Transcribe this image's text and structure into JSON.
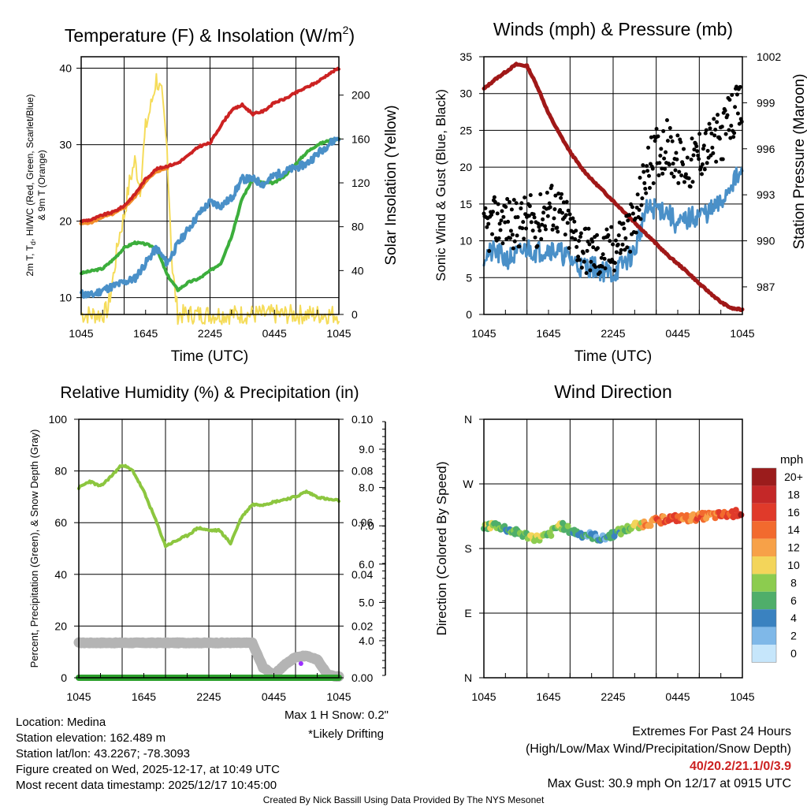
{
  "colors": {
    "temp": "#cc2222",
    "temp9m": "#f28e2b",
    "windchill": "#4a90c8",
    "dewpoint": "#3cae3c",
    "insolation": "#f5dc5a",
    "gust": "#000000",
    "wind": "#4a90c8",
    "pressure": "#a01818",
    "rh": "#8cc63f",
    "precip": "#2ca02c",
    "snow": "#b4b4b4",
    "drift": "#9b30ff",
    "extremes": "#cc2222",
    "footer": "#909090"
  },
  "chart_data": [
    {
      "id": "temperature",
      "type": "line",
      "title": "Temperature (F) & Insolation (W/m",
      "title_sup": "2",
      "title_close": ")",
      "xlabel": "Time (UTC)",
      "ylabel_left_1": "2m T, T",
      "ylabel_left_sub": "d",
      "ylabel_left_2": ", HI/WC (Red, Green, Scarlet/Blue)",
      "ylabel_left_3": "& 9m T (Orange)",
      "ylabel_right": "Solar Insolation (Yellow)",
      "x_ticks": [
        "1045",
        "1645",
        "2245",
        "0445",
        "1045"
      ],
      "ylim": [
        7.8,
        41.5
      ],
      "yticks_left": [
        10,
        20,
        30,
        40
      ],
      "ylim_right": [
        0,
        235
      ],
      "yticks_right": [
        0,
        40,
        80,
        120,
        160,
        200
      ],
      "x_range_hours": [
        0,
        24
      ],
      "series": [
        {
          "name": "2m T",
          "color_key": "temp",
          "x": [
            0,
            1,
            2,
            3,
            4,
            5,
            6,
            7,
            8,
            9,
            10,
            11,
            12,
            13,
            14,
            15,
            16,
            17,
            18,
            19,
            20,
            21,
            22,
            23,
            24
          ],
          "values": [
            20.0,
            20.2,
            20.8,
            21.2,
            22.0,
            23.5,
            25.5,
            26.8,
            27.2,
            27.6,
            28.6,
            29.8,
            30.2,
            32.5,
            34.5,
            35.2,
            34.0,
            34.4,
            35.5,
            36.0,
            36.8,
            37.5,
            38.2,
            39.2,
            40.0
          ]
        },
        {
          "name": "9m T",
          "color_key": "temp9m",
          "x": [
            0,
            1,
            2,
            3,
            4,
            5,
            6,
            7,
            8
          ],
          "values": [
            19.7,
            19.9,
            20.6,
            21.0,
            21.8,
            23.2,
            25.3,
            26.5,
            27.0
          ]
        },
        {
          "name": "Dew Point",
          "color_key": "dewpoint",
          "x": [
            0,
            1,
            2,
            3,
            4,
            5,
            6,
            7,
            8,
            9,
            10,
            11,
            12,
            13,
            14,
            15,
            16,
            17,
            18,
            19,
            20,
            21,
            22,
            23,
            24
          ],
          "values": [
            13.2,
            13.5,
            13.8,
            15.0,
            16.5,
            17.2,
            17.0,
            16.5,
            13.0,
            11.0,
            12.0,
            12.5,
            13.5,
            14.5,
            18.0,
            23.0,
            25.5,
            25.0,
            25.0,
            26.0,
            27.5,
            29.0,
            30.0,
            30.5,
            30.8
          ]
        },
        {
          "name": "Wind Chill",
          "color_key": "windchill",
          "x": [
            0,
            1,
            2,
            3,
            4,
            5,
            6,
            7,
            8,
            9,
            10,
            11,
            12,
            13,
            14,
            15,
            16,
            17,
            18,
            19,
            20,
            21,
            22,
            23,
            24
          ],
          "values": [
            10.5,
            10.3,
            11.0,
            11.5,
            12.0,
            12.5,
            14.5,
            16.5,
            14.5,
            17.0,
            19.0,
            21.0,
            22.5,
            22.0,
            23.0,
            25.5,
            25.5,
            24.8,
            26.0,
            26.5,
            27.0,
            27.5,
            28.8,
            30.0,
            31.0
          ]
        },
        {
          "name": "Solar Insolation",
          "color_key": "insolation",
          "axis": "right",
          "x": [
            0,
            1,
            2,
            2.5,
            3,
            3.5,
            4,
            4.5,
            5,
            5.5,
            6,
            6.5,
            7,
            7.5,
            8,
            8.5,
            9,
            24
          ],
          "values": [
            0,
            0,
            0,
            5,
            35,
            70,
            90,
            120,
            140,
            115,
            170,
            190,
            215,
            200,
            150,
            40,
            0,
            0
          ]
        }
      ]
    },
    {
      "id": "winds",
      "type": "scatter",
      "title": "Winds (mph) & Pressure (mb)",
      "xlabel": "Time (UTC)",
      "ylabel_left": "Sonic Wind & Gust (Blue, Black)",
      "ylabel_right": "Station Pressure (Maroon)",
      "x_ticks": [
        "1045",
        "1645",
        "2245",
        "0445",
        "1045"
      ],
      "ylim": [
        0,
        35
      ],
      "yticks_left": [
        0,
        5,
        10,
        15,
        20,
        25,
        30,
        35
      ],
      "ylim_right": [
        985.2,
        1002
      ],
      "yticks_right": [
        987,
        990,
        993,
        996,
        999,
        1002
      ],
      "x_range_hours": [
        0,
        24
      ],
      "series": [
        {
          "name": "Sonic Wind",
          "color_key": "wind",
          "x": [
            0,
            1,
            2,
            3,
            4,
            5,
            6,
            7,
            8,
            9,
            10,
            11,
            12,
            13,
            14,
            15,
            16,
            17,
            18,
            19,
            20,
            21,
            22,
            23,
            24
          ],
          "values": [
            8.0,
            8.5,
            7.5,
            8.0,
            9.0,
            8.5,
            9.0,
            8.5,
            7.5,
            6.5,
            6.5,
            6.0,
            5.5,
            7.0,
            8.5,
            14.0,
            14.5,
            14.0,
            12.0,
            13.0,
            13.5,
            14.0,
            15.0,
            18.0,
            19.0
          ]
        },
        {
          "name": "Gust",
          "color_key": "gust",
          "x": [
            0,
            1,
            2,
            3,
            4,
            5,
            6,
            7,
            8,
            9,
            10,
            11,
            12,
            13,
            14,
            15,
            16,
            17,
            18,
            19,
            20,
            21,
            22,
            23,
            24
          ],
          "values": [
            11.0,
            12.5,
            13.0,
            12.0,
            13.0,
            12.5,
            15.0,
            14.0,
            11.5,
            9.5,
            8.5,
            8.0,
            9.0,
            11.0,
            12.0,
            19.0,
            22.0,
            23.0,
            21.0,
            20.0,
            22.0,
            23.0,
            24.0,
            27.0,
            28.0
          ]
        },
        {
          "name": "Station Pressure",
          "color_key": "pressure",
          "axis": "right",
          "x": [
            0,
            1,
            2,
            3,
            4,
            5,
            6,
            7,
            8,
            9,
            10,
            11,
            12,
            13,
            14,
            15,
            16,
            17,
            18,
            19,
            20,
            21,
            22,
            23,
            24
          ],
          "values": [
            999.9,
            1000.5,
            1001.0,
            1001.5,
            1001.4,
            1000.0,
            998.3,
            997.0,
            995.8,
            994.8,
            994.0,
            993.3,
            992.6,
            991.9,
            991.2,
            990.5,
            989.8,
            989.1,
            988.5,
            987.9,
            987.2,
            986.6,
            986.0,
            985.6,
            985.5
          ]
        }
      ]
    },
    {
      "id": "humidity",
      "type": "line",
      "title": "Relative Humidity (%) & Precipitation (in)",
      "ylabel_left": "Percent, Precipitation (Green), & Snow Depth (Gray)",
      "x_ticks": [
        "1045",
        "1645",
        "2245",
        "0445",
        "1045"
      ],
      "ylim": [
        0,
        100
      ],
      "yticks_left": [
        0,
        20,
        40,
        60,
        80,
        100
      ],
      "ylim_right": [
        0,
        0.1
      ],
      "yticks_right": [
        "0.00",
        "0.02",
        "0.04",
        "0.06",
        "0.08",
        "0.10"
      ],
      "snow_ticks": [
        "4.0",
        "5.0",
        "6.0",
        "7.0",
        "8.0",
        "9.0"
      ],
      "x_range_hours": [
        0,
        24
      ],
      "snow_note": "Max 1 H Snow: 0.2\"",
      "drift_note": "*Likely Drifting",
      "series": [
        {
          "name": "Relative Humidity",
          "color_key": "rh",
          "x": [
            0,
            1,
            2,
            3,
            4,
            5,
            6,
            7,
            8,
            9,
            10,
            11,
            12,
            13,
            14,
            15,
            16,
            17,
            18,
            19,
            20,
            21,
            22,
            23,
            24
          ],
          "values": [
            73.5,
            76.0,
            74.0,
            78.0,
            82.5,
            80.0,
            72.0,
            62.0,
            51.0,
            53.0,
            55.0,
            58.0,
            57.0,
            57.0,
            52.0,
            62.0,
            67.0,
            67.0,
            68.0,
            69.0,
            70.0,
            72.0,
            70.0,
            69.0,
            68.5
          ]
        },
        {
          "name": "Snow Depth",
          "color_key": "snow",
          "x": [
            0,
            1,
            2,
            3,
            4,
            5,
            6,
            7,
            8,
            9,
            10,
            11,
            12,
            13,
            14,
            15,
            16,
            17,
            18,
            19,
            20,
            21,
            22,
            23,
            24
          ],
          "values": [
            13.5,
            13.5,
            13.5,
            13.5,
            13.5,
            13.5,
            13.5,
            13.5,
            13.5,
            13.5,
            13.5,
            13.5,
            13.5,
            13.5,
            13.5,
            13.5,
            13.5,
            4.0,
            1.0,
            5.0,
            8.0,
            8.5,
            7.0,
            1.0,
            0.5
          ]
        },
        {
          "name": "Precipitation",
          "color_key": "precip",
          "x": [
            0,
            24
          ],
          "values": [
            0,
            0
          ]
        }
      ]
    },
    {
      "id": "direction",
      "type": "scatter",
      "title": "Wind Direction",
      "ylabel_left": "Direction (Colored By Speed)",
      "x_ticks": [
        "1045",
        "1645",
        "2245",
        "0445",
        "1045"
      ],
      "ylim": [
        0,
        360
      ],
      "ytick_labels": [
        "N",
        "E",
        "S",
        "W",
        "N"
      ],
      "x_range_hours": [
        0,
        24
      ],
      "colorbar_title": "mph",
      "colorbar_labels": [
        "20+",
        "18",
        "16",
        "14",
        "12",
        "10",
        "8",
        "6",
        "4",
        "2",
        "0"
      ],
      "colorbar_colors": [
        "#9b1c1c",
        "#c42828",
        "#e03a2a",
        "#f26a2e",
        "#f7a148",
        "#f3d55a",
        "#8ccc4f",
        "#4fae6a",
        "#3a82c0",
        "#7fb8e8",
        "#c6e6fb"
      ],
      "series": [
        {
          "name": "Wind Direction",
          "x": [
            0,
            1,
            2,
            3,
            4,
            5,
            6,
            7,
            8,
            9,
            10,
            11,
            12,
            13,
            14,
            15,
            16,
            17,
            18,
            19,
            20,
            21,
            22,
            23,
            24
          ],
          "values": [
            210,
            213,
            208,
            202,
            198,
            194,
            198,
            213,
            205,
            200,
            198,
            193,
            200,
            205,
            212,
            215,
            218,
            222,
            222,
            222,
            224,
            226,
            226,
            228,
            230
          ],
          "speeds": [
            8,
            8,
            6,
            7,
            6,
            10,
            7,
            8,
            6,
            5,
            4,
            4,
            5,
            6,
            8,
            12,
            14,
            15,
            15,
            13,
            14,
            12,
            15,
            16,
            18
          ]
        }
      ]
    }
  ],
  "info": {
    "location": "Location: Medina",
    "elevation": "Station elevation: 162.489 m",
    "latlon": "Station lat/lon: 43.2267; -78.3093",
    "created": "Figure created on Wed, 2025-12-17, at 10:49 UTC",
    "recent": "Most recent data timestamp: 2025/12/17 10:45:00"
  },
  "extremes": {
    "title": "Extremes For Past 24 Hours",
    "subtitle": "(High/Low/Max Wind/Precipitation/Snow Depth)",
    "values": "40/20.2/21.1/0/3.9",
    "gust": "Max Gust: 30.9 mph On 12/17 at 0915 UTC"
  },
  "footer": "Created By Nick Bassill Using Data Provided By The NYS Mesonet"
}
